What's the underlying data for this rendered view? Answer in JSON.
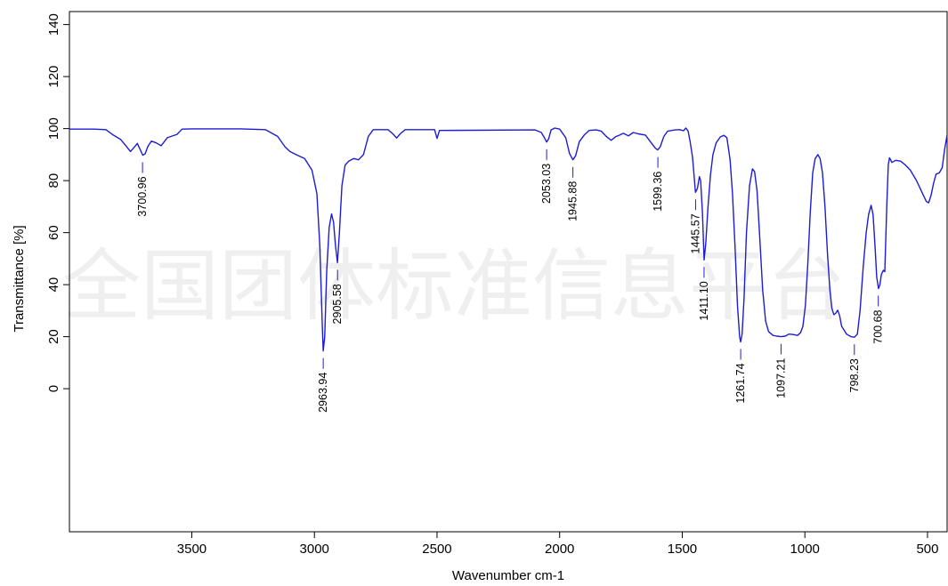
{
  "chart_data": {
    "type": "line",
    "title": "",
    "xlabel": "Wavenumber cm-1",
    "ylabel": "Transmittance [%]",
    "xlim": [
      3999,
      420
    ],
    "ylim": [
      -55,
      145
    ],
    "x_reversed": true,
    "grid": false,
    "line_color": "#1c1cd6",
    "watermark": "全国团体标准信息平台",
    "x_ticks": [
      3500,
      3000,
      2500,
      2000,
      1500,
      1000,
      500
    ],
    "y_ticks": [
      0,
      20,
      40,
      60,
      80,
      100,
      120,
      140
    ],
    "series": [
      {
        "points": [
          [
            3999,
            99.8
          ],
          [
            3900,
            99.8
          ],
          [
            3850,
            99.6
          ],
          [
            3820,
            97.5
          ],
          [
            3790,
            95.8
          ],
          [
            3770,
            93.5
          ],
          [
            3750,
            91.2
          ],
          [
            3735,
            92.8
          ],
          [
            3722,
            94.3
          ],
          [
            3712,
            92.2
          ],
          [
            3700,
            89.8
          ],
          [
            3690,
            90.3
          ],
          [
            3680,
            93.0
          ],
          [
            3665,
            95.2
          ],
          [
            3645,
            94.5
          ],
          [
            3625,
            93.4
          ],
          [
            3600,
            96.5
          ],
          [
            3560,
            97.8
          ],
          [
            3540,
            99.8
          ],
          [
            3500,
            99.9
          ],
          [
            3300,
            99.9
          ],
          [
            3200,
            99.6
          ],
          [
            3150,
            97.0
          ],
          [
            3120,
            93.0
          ],
          [
            3100,
            91.2
          ],
          [
            3070,
            89.8
          ],
          [
            3040,
            88.5
          ],
          [
            3010,
            84.0
          ],
          [
            2990,
            75.0
          ],
          [
            2978,
            55.0
          ],
          [
            2968,
            25.0
          ],
          [
            2964,
            14.5
          ],
          [
            2958,
            20.0
          ],
          [
            2950,
            45.0
          ],
          [
            2940,
            62.0
          ],
          [
            2930,
            67.2
          ],
          [
            2922,
            64.0
          ],
          [
            2914,
            55.0
          ],
          [
            2906,
            48.5
          ],
          [
            2898,
            60.0
          ],
          [
            2888,
            78.0
          ],
          [
            2875,
            86.0
          ],
          [
            2860,
            87.5
          ],
          [
            2840,
            88.5
          ],
          [
            2820,
            88.0
          ],
          [
            2800,
            90.0
          ],
          [
            2780,
            97.0
          ],
          [
            2760,
            99.6
          ],
          [
            2700,
            99.6
          ],
          [
            2680,
            98.0
          ],
          [
            2665,
            96.4
          ],
          [
            2650,
            98.0
          ],
          [
            2630,
            99.6
          ],
          [
            2510,
            99.6
          ],
          [
            2500,
            96.2
          ],
          [
            2490,
            99.3
          ],
          [
            2100,
            99.5
          ],
          [
            2075,
            98.5
          ],
          [
            2062,
            96.5
          ],
          [
            2053,
            94.8
          ],
          [
            2045,
            96.0
          ],
          [
            2035,
            99.5
          ],
          [
            2020,
            100.2
          ],
          [
            2000,
            99.8
          ],
          [
            1975,
            96.5
          ],
          [
            1960,
            90.5
          ],
          [
            1946,
            88.0
          ],
          [
            1935,
            89.5
          ],
          [
            1920,
            95.0
          ],
          [
            1900,
            97.5
          ],
          [
            1880,
            99.3
          ],
          [
            1850,
            99.5
          ],
          [
            1830,
            99.0
          ],
          [
            1810,
            97.0
          ],
          [
            1790,
            95.5
          ],
          [
            1770,
            97.0
          ],
          [
            1760,
            97.3
          ],
          [
            1740,
            98.2
          ],
          [
            1720,
            97.2
          ],
          [
            1700,
            98.5
          ],
          [
            1680,
            98.0
          ],
          [
            1650,
            97.5
          ],
          [
            1630,
            95.0
          ],
          [
            1610,
            92.5
          ],
          [
            1600,
            91.8
          ],
          [
            1590,
            93.0
          ],
          [
            1575,
            97.0
          ],
          [
            1560,
            99.0
          ],
          [
            1530,
            99.5
          ],
          [
            1510,
            99.6
          ],
          [
            1495,
            99.2
          ],
          [
            1485,
            100.2
          ],
          [
            1476,
            99.0
          ],
          [
            1468,
            95.0
          ],
          [
            1458,
            89.0
          ],
          [
            1446,
            75.5
          ],
          [
            1438,
            77.0
          ],
          [
            1430,
            81.5
          ],
          [
            1425,
            80.0
          ],
          [
            1418,
            68.0
          ],
          [
            1411,
            49.5
          ],
          [
            1404,
            56.0
          ],
          [
            1395,
            70.0
          ],
          [
            1385,
            82.0
          ],
          [
            1375,
            90.0
          ],
          [
            1362,
            94.5
          ],
          [
            1345,
            96.8
          ],
          [
            1330,
            97.4
          ],
          [
            1318,
            96.5
          ],
          [
            1305,
            88.0
          ],
          [
            1295,
            75.0
          ],
          [
            1285,
            55.0
          ],
          [
            1275,
            32.0
          ],
          [
            1266,
            20.0
          ],
          [
            1262,
            18.0
          ],
          [
            1256,
            21.0
          ],
          [
            1248,
            35.0
          ],
          [
            1238,
            60.0
          ],
          [
            1226,
            78.0
          ],
          [
            1214,
            84.5
          ],
          [
            1205,
            83.5
          ],
          [
            1195,
            76.0
          ],
          [
            1185,
            60.0
          ],
          [
            1172,
            38.0
          ],
          [
            1160,
            26.0
          ],
          [
            1148,
            22.0
          ],
          [
            1130,
            20.5
          ],
          [
            1115,
            20.2
          ],
          [
            1097,
            20.0
          ],
          [
            1080,
            20.2
          ],
          [
            1065,
            21.0
          ],
          [
            1045,
            20.8
          ],
          [
            1030,
            20.5
          ],
          [
            1018,
            21.5
          ],
          [
            1008,
            24.0
          ],
          [
            998,
            32.0
          ],
          [
            988,
            48.0
          ],
          [
            978,
            68.0
          ],
          [
            968,
            83.0
          ],
          [
            958,
            88.5
          ],
          [
            947,
            90.0
          ],
          [
            938,
            88.5
          ],
          [
            928,
            83.0
          ],
          [
            918,
            70.0
          ],
          [
            908,
            52.0
          ],
          [
            898,
            38.0
          ],
          [
            890,
            31.0
          ],
          [
            882,
            28.5
          ],
          [
            874,
            29.0
          ],
          [
            866,
            30.2
          ],
          [
            858,
            28.0
          ],
          [
            850,
            24.0
          ],
          [
            840,
            22.5
          ],
          [
            830,
            21.0
          ],
          [
            812,
            20.0
          ],
          [
            798,
            19.8
          ],
          [
            786,
            21.0
          ],
          [
            775,
            30.0
          ],
          [
            762,
            47.0
          ],
          [
            750,
            60.0
          ],
          [
            740,
            67.0
          ],
          [
            730,
            70.5
          ],
          [
            722,
            67.0
          ],
          [
            714,
            55.0
          ],
          [
            707,
            43.0
          ],
          [
            700,
            38.5
          ],
          [
            694,
            40.0
          ],
          [
            688,
            44.0
          ],
          [
            680,
            45.5
          ],
          [
            674,
            45.0
          ],
          [
            666,
            70.0
          ],
          [
            660,
            86.0
          ],
          [
            655,
            88.8
          ],
          [
            645,
            87.0
          ],
          [
            630,
            87.8
          ],
          [
            610,
            87.5
          ],
          [
            590,
            86.0
          ],
          [
            570,
            84.0
          ],
          [
            545,
            80.0
          ],
          [
            520,
            75.0
          ],
          [
            505,
            72.0
          ],
          [
            495,
            71.5
          ],
          [
            485,
            74.5
          ],
          [
            475,
            79.0
          ],
          [
            465,
            82.5
          ],
          [
            452,
            83.0
          ],
          [
            440,
            85.0
          ],
          [
            430,
            92.0
          ],
          [
            420,
            97.5
          ]
        ]
      }
    ],
    "annotations": [
      {
        "label": "3700.96",
        "x": 3700.96,
        "y": 89.8
      },
      {
        "label": "2963.94",
        "x": 2963.94,
        "y": 14.5
      },
      {
        "label": "2905.58",
        "x": 2905.58,
        "y": 48.5
      },
      {
        "label": "2053.03",
        "x": 2053.03,
        "y": 94.8
      },
      {
        "label": "1945.88",
        "x": 1945.88,
        "y": 88.0
      },
      {
        "label": "1599.36",
        "x": 1599.36,
        "y": 91.8
      },
      {
        "label": "1445.57",
        "x": 1445.57,
        "y": 75.5
      },
      {
        "label": "1411.10",
        "x": 1411.1,
        "y": 49.5
      },
      {
        "label": "1261.74",
        "x": 1261.74,
        "y": 18.0
      },
      {
        "label": "1097.21",
        "x": 1097.21,
        "y": 20.0
      },
      {
        "label": "798.23",
        "x": 798.23,
        "y": 19.8
      },
      {
        "label": "700.68",
        "x": 700.68,
        "y": 38.5
      }
    ]
  }
}
